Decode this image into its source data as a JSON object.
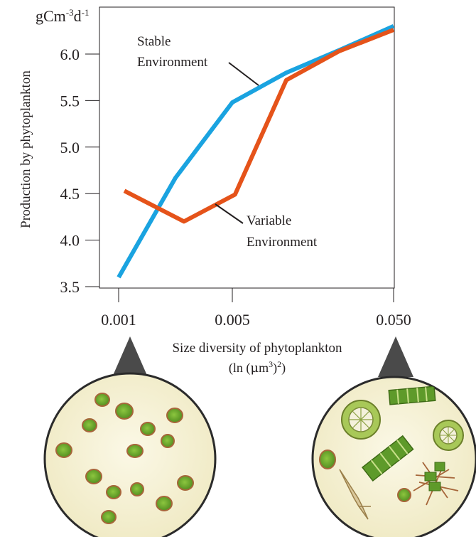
{
  "chart_data": {
    "type": "line",
    "unit_label": "gCm-3d-1",
    "unit_parts": {
      "base": "gCm",
      "exp1": "-3",
      "mid": "d",
      "exp2": "-1"
    },
    "ylabel": "Production by phytoplankton",
    "xlabel": "Size diversity of phytoplankton",
    "xlabel_unit": {
      "pre": "(ln (",
      "mu": "μ",
      "m": "m",
      "sup1": "3",
      "mid": ")",
      "sup2": "2",
      "post": ")"
    },
    "x_ticks": [
      "0.001",
      "0.005",
      "0.050"
    ],
    "y_ticks": [
      "3.5",
      "4.0",
      "4.5",
      "5.0",
      "5.5",
      "6.0"
    ],
    "ylim": [
      3.5,
      6.3
    ],
    "x_positions": [
      0,
      0.2,
      0.4,
      0.6,
      0.8,
      1.0
    ],
    "series": [
      {
        "name": "Stable Environment",
        "label_lines": [
          "Stable",
          "Environment"
        ],
        "color": "#1aa3e0",
        "points": [
          [
            0,
            3.6
          ],
          [
            0.2,
            4.67
          ],
          [
            0.4,
            5.48
          ],
          [
            0.6,
            5.8
          ],
          [
            0.8,
            6.04
          ],
          [
            1.0,
            6.3
          ]
        ]
      },
      {
        "name": "Variable Environment",
        "label_lines": [
          "Variable",
          "Environment"
        ],
        "color": "#e5531a",
        "points": [
          [
            0.02,
            4.53
          ],
          [
            0.23,
            4.2
          ],
          [
            0.41,
            4.49
          ],
          [
            0.6,
            5.72
          ],
          [
            0.8,
            6.03
          ],
          [
            1.0,
            6.26
          ]
        ]
      }
    ],
    "grid": false,
    "legend": "inline annotations",
    "insets": [
      {
        "name": "low-diversity-sample",
        "under_tick": "0.001",
        "content": "uniform small round cells"
      },
      {
        "name": "high-diversity-sample",
        "under_tick": "0.050",
        "content": "varied diatoms and filaments"
      }
    ]
  },
  "colors": {
    "axis": "#231f20",
    "callout": "#4a4a4a",
    "dish_fill": "#f7f3d9",
    "dish_edge": "#2b2b2b",
    "cell_green": "#6fa832",
    "cell_rim": "#a6663a"
  }
}
